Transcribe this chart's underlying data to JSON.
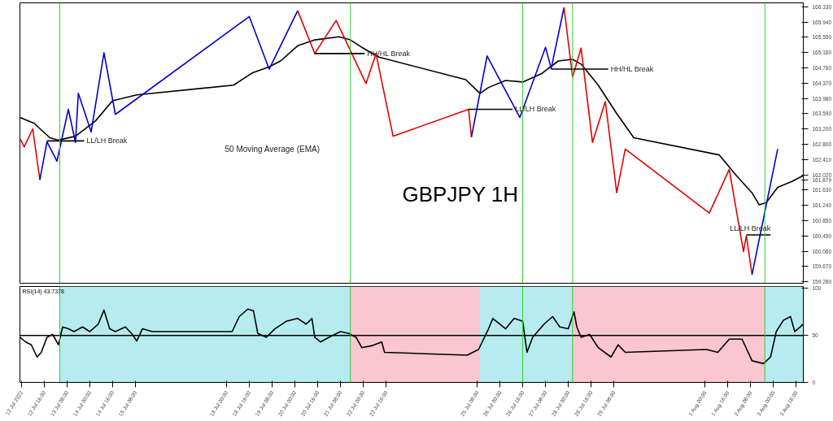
{
  "chart_data": [
    {
      "type": "line",
      "title": "GBPJPY 1H",
      "xlim": [
        "2022-07-11T23:00",
        "2022-08-03T21:00"
      ],
      "ylim": [
        159.24,
        166.43
      ],
      "tick_labels": "y",
      "grid": false,
      "yticks": [
        {
          "value": 166.33,
          "label": "166.330"
        },
        {
          "value": 165.94,
          "label": "165.940"
        },
        {
          "value": 165.55,
          "label": "165.550"
        },
        {
          "value": 165.16,
          "label": "165.160"
        },
        {
          "value": 164.76,
          "label": "164.760"
        },
        {
          "value": 164.37,
          "label": "164.370"
        },
        {
          "value": 163.98,
          "label": "163.980"
        },
        {
          "value": 163.59,
          "label": "163.590"
        },
        {
          "value": 163.2,
          "label": "163.200"
        },
        {
          "value": 162.8,
          "label": "162.800"
        },
        {
          "value": 162.41,
          "label": "162.410"
        },
        {
          "value": 162.02,
          "label": "162.020"
        },
        {
          "value": 161.879,
          "label": "161.879"
        },
        {
          "value": 161.63,
          "label": "161.630"
        },
        {
          "value": 161.24,
          "label": "161.240"
        },
        {
          "value": 160.85,
          "label": "160.850"
        },
        {
          "value": 160.45,
          "label": "160.450"
        },
        {
          "value": 160.06,
          "label": "160.060"
        },
        {
          "value": 159.67,
          "label": "159.670"
        },
        {
          "value": 159.28,
          "label": "159.280"
        }
      ],
      "series": [
        {
          "color": "#000000",
          "x": [
            "2022-07-11T23:00",
            "2022-07-12T09:00",
            "2022-07-12T20:00",
            "2022-07-13T02:00",
            "2022-07-13T14:00",
            "2022-07-14T04:00",
            "2022-07-14T16:00",
            "2022-07-15T09:00",
            "2022-07-18T05:00",
            "2022-07-18T18:00",
            "2022-07-19T06:00",
            "2022-07-19T14:00",
            "2022-07-20T02:00",
            "2022-07-20T14:00",
            "2022-07-21T07:00",
            "2022-07-21T15:00",
            "2022-07-21T23:00",
            "2022-07-22T11:00",
            "2022-07-25T00:00",
            "2022-07-25T10:00",
            "2022-07-25T16:00",
            "2022-07-26T04:00",
            "2022-07-26T16:00",
            "2022-07-27T05:00",
            "2022-07-27T17:00",
            "2022-07-28T03:00",
            "2022-07-28T09:00",
            "2022-07-28T21:00",
            "2022-07-29T10:00",
            "2022-07-29T22:00",
            "2022-08-01T10:00",
            "2022-08-01T22:00",
            "2022-08-02T09:00",
            "2022-08-02T14:00",
            "2022-08-02T19:00",
            "2022-08-03T03:00",
            "2022-08-03T13:00",
            "2022-08-03T21:00"
          ],
          "values": [
            163.49,
            163.34,
            162.97,
            162.91,
            163.01,
            163.4,
            163.92,
            164.07,
            164.32,
            164.63,
            164.79,
            164.94,
            165.33,
            165.48,
            165.56,
            165.48,
            165.29,
            165.04,
            164.46,
            164.11,
            164.26,
            164.44,
            164.4,
            164.61,
            164.94,
            164.98,
            164.86,
            164.32,
            163.59,
            162.97,
            162.53,
            162.0,
            161.56,
            161.25,
            161.31,
            161.7,
            161.85,
            162.0
          ]
        },
        {
          "color": "#e00000",
          "x": [
            "2022-07-11T23:00",
            "2022-07-12T02:00",
            "2022-07-12T08:00",
            "2022-07-12T13:00"
          ],
          "values": [
            162.95,
            162.74,
            163.2,
            161.89
          ]
        },
        {
          "color": "#0000cc",
          "x": [
            "2022-07-12T13:00",
            "2022-07-12T18:00",
            "2022-07-13T01:00",
            "2022-07-13T09:00",
            "2022-07-13T14:00",
            "2022-07-13T16:00",
            "2022-07-14T01:00",
            "2022-07-14T10:00",
            "2022-07-14T18:00",
            "2022-07-18T16:00",
            "2022-07-19T06:00",
            "2022-07-20T02:00"
          ],
          "values": [
            161.89,
            162.87,
            162.37,
            163.7,
            162.85,
            164.11,
            163.12,
            165.15,
            163.57,
            166.08,
            164.73,
            166.23
          ]
        },
        {
          "color": "#e00000",
          "x": [
            "2022-07-20T02:00",
            "2022-07-20T14:00",
            "2022-07-21T05:00",
            "2022-07-22T02:00",
            "2022-07-22T09:00",
            "2022-07-22T21:00",
            "2022-07-25T02:00",
            "2022-07-25T04:00"
          ],
          "values": [
            166.23,
            165.13,
            165.98,
            164.36,
            165.13,
            163.01,
            163.7,
            162.99
          ]
        },
        {
          "color": "#0000cc",
          "x": [
            "2022-07-25T04:00",
            "2022-07-25T15:00",
            "2022-07-26T14:00",
            "2022-07-27T08:00",
            "2022-07-27T12:00",
            "2022-07-27T21:00"
          ],
          "values": [
            162.99,
            165.07,
            163.49,
            165.29,
            164.75,
            166.31
          ]
        },
        {
          "color": "#e00000",
          "x": [
            "2022-07-27T21:00",
            "2022-07-28T03:00",
            "2022-07-28T09:00",
            "2022-07-28T17:00",
            "2022-07-29T02:00",
            "2022-07-29T10:00",
            "2022-07-29T16:00",
            "2022-08-01T03:00",
            "2022-08-01T17:00",
            "2022-08-02T03:00",
            "2022-08-02T05:00",
            "2022-08-02T09:00"
          ],
          "values": [
            166.31,
            164.53,
            165.27,
            162.85,
            163.9,
            161.56,
            162.68,
            161.04,
            162.16,
            160.05,
            160.46,
            159.46
          ]
        },
        {
          "color": "#0000cc",
          "x": [
            "2022-08-02T09:00",
            "2022-08-03T03:00"
          ],
          "values": [
            159.46,
            162.68
          ]
        },
        {
          "color": "#000000",
          "x": [
            "2022-07-12T18:00",
            "2022-07-13T20:00"
          ],
          "values": [
            162.89,
            162.89
          ]
        },
        {
          "color": "#000000",
          "x": [
            "2022-07-20T14:00",
            "2022-07-22T01:00"
          ],
          "values": [
            165.13,
            165.13
          ]
        },
        {
          "color": "#000000",
          "x": [
            "2022-07-25T02:00",
            "2022-07-26T09:00"
          ],
          "values": [
            163.7,
            163.7
          ]
        },
        {
          "color": "#000000",
          "x": [
            "2022-07-27T12:00",
            "2022-07-29T04:00"
          ],
          "values": [
            164.73,
            164.73
          ]
        },
        {
          "color": "#000000",
          "x": [
            "2022-08-02T05:00",
            "2022-08-02T22:00"
          ],
          "values": [
            160.48,
            160.48
          ]
        }
      ],
      "ref_lines": [
        {
          "axis": "x",
          "value": "2022-07-13T03:00",
          "color": "#33cc33"
        },
        {
          "axis": "x",
          "value": "2022-07-21T15:00",
          "color": "#33cc33"
        },
        {
          "axis": "x",
          "value": "2022-07-26T16:00",
          "color": "#33cc33"
        },
        {
          "axis": "x",
          "value": "2022-07-28T03:00",
          "color": "#33cc33"
        },
        {
          "axis": "x",
          "value": "2022-08-02T18:00",
          "color": "#33cc33"
        }
      ],
      "annotations": [
        {
          "text": "LL/LH Break",
          "x": "2022-07-13T20:00",
          "y": 162.89
        },
        {
          "text": "HH/HL Break",
          "x": "2022-07-22T01:00",
          "y": 165.13
        },
        {
          "text": "LL/LH Break",
          "x": "2022-07-26T09:00",
          "y": 163.7
        },
        {
          "text": "HH/HL Break",
          "x": "2022-07-29T04:00",
          "y": 164.73
        },
        {
          "text": "LL/LH Break",
          "x": "2022-08-02T22:00",
          "y": 160.48
        },
        "50 Moving Average (EMA)"
      ]
    },
    {
      "type": "line",
      "title": "RSI(14) 43.7378",
      "xlim": [
        "2022-07-11T23:00",
        "2022-08-03T21:00"
      ],
      "ylim": [
        0,
        102
      ],
      "yticks": [
        100,
        50,
        0
      ],
      "grid": false,
      "xticks": [
        {
          "value": "2022-07-12T00:00",
          "label": "12 Jul 2022"
        },
        {
          "value": "2022-07-12T16:00",
          "label": "12 Jul 16:00"
        },
        {
          "value": "2022-07-13T08:00",
          "label": "13 Jul 08:00"
        },
        {
          "value": "2022-07-14T00:00",
          "label": "14 Jul 00:00"
        },
        {
          "value": "2022-07-14T16:00",
          "label": "14 Jul 16:00"
        },
        {
          "value": "2022-07-15T08:00",
          "label": "15 Jul 08:00"
        },
        {
          "value": "2022-07-18T00:00",
          "label": "18 Jul 00:00"
        },
        {
          "value": "2022-07-18T16:00",
          "label": "18 Jul 16:00"
        },
        {
          "value": "2022-07-19T08:00",
          "label": "19 Jul 08:00"
        },
        {
          "value": "2022-07-20T00:00",
          "label": "20 Jul 00:00"
        },
        {
          "value": "2022-07-20T16:00",
          "label": "20 Jul 16:00"
        },
        {
          "value": "2022-07-21T08:00",
          "label": "21 Jul 08:00"
        },
        {
          "value": "2022-07-22T00:00",
          "label": "22 Jul 00:00"
        },
        {
          "value": "2022-07-22T16:00",
          "label": "22 Jul 16:00"
        },
        {
          "value": "2022-07-25T08:00",
          "label": "25 Jul 08:00"
        },
        {
          "value": "2022-07-26T00:00",
          "label": "26 Jul 00:00"
        },
        {
          "value": "2022-07-26T16:00",
          "label": "26 Jul 16:00"
        },
        {
          "value": "2022-07-27T08:00",
          "label": "27 Jul 08:00"
        },
        {
          "value": "2022-07-28T00:00",
          "label": "28 Jul 00:00"
        },
        {
          "value": "2022-07-28T16:00",
          "label": "28 Jul 16:00"
        },
        {
          "value": "2022-07-29T08:00",
          "label": "29 Jul 08:00"
        },
        {
          "value": "2022-08-01T00:00",
          "label": "1 Aug 00:00"
        },
        {
          "value": "2022-08-01T16:00",
          "label": "1 Aug 16:00"
        },
        {
          "value": "2022-08-02T08:00",
          "label": "2 Aug 08:00"
        },
        {
          "value": "2022-08-03T00:00",
          "label": "3 Aug 00:00"
        },
        {
          "value": "2022-08-03T16:00",
          "label": "3 Aug 16:00"
        }
      ],
      "series": [
        {
          "color": "#000000",
          "x": [
            "2022-07-11T23:00",
            "2022-07-12T03:00",
            "2022-07-12T07:00",
            "2022-07-12T11:00",
            "2022-07-12T14:00",
            "2022-07-12T18:00",
            "2022-07-12T22:00",
            "2022-07-13T02:00",
            "2022-07-13T05:00",
            "2022-07-13T09:00",
            "2022-07-13T13:00",
            "2022-07-13T19:00",
            "2022-07-14T00:00",
            "2022-07-14T06:00",
            "2022-07-14T10:00",
            "2022-07-14T14:00",
            "2022-07-14T18:00",
            "2022-07-15T01:00",
            "2022-07-15T06:00",
            "2022-07-15T09:00",
            "2022-07-15T13:00",
            "2022-07-15T20:00",
            "2022-07-18T04:00",
            "2022-07-18T09:00",
            "2022-07-18T15:00",
            "2022-07-18T19:00",
            "2022-07-18T22:00",
            "2022-07-19T04:00",
            "2022-07-19T10:00",
            "2022-07-19T18:00",
            "2022-07-20T02:00",
            "2022-07-20T08:00",
            "2022-07-20T12:00",
            "2022-07-20T14:00",
            "2022-07-20T18:00",
            "2022-07-21T00:00",
            "2022-07-21T08:00",
            "2022-07-21T14:00",
            "2022-07-21T19:00",
            "2022-07-21T23:00",
            "2022-07-22T06:00",
            "2022-07-22T13:00",
            "2022-07-22T15:00",
            "2022-07-25T01:00",
            "2022-07-25T09:00",
            "2022-07-25T16:00",
            "2022-07-25T19:00",
            "2022-07-26T00:00",
            "2022-07-26T04:00",
            "2022-07-26T10:00",
            "2022-07-26T16:00",
            "2022-07-26T19:00",
            "2022-07-26T23:00",
            "2022-07-27T07:00",
            "2022-07-27T13:00",
            "2022-07-27T18:00",
            "2022-07-28T00:00",
            "2022-07-28T04:00",
            "2022-07-28T06:00",
            "2022-07-28T09:00",
            "2022-07-28T15:00",
            "2022-07-28T21:00",
            "2022-07-29T06:00",
            "2022-07-29T11:00",
            "2022-07-29T16:00",
            "2022-08-01T01:00",
            "2022-08-01T09:00",
            "2022-08-01T17:00",
            "2022-08-02T02:00",
            "2022-08-02T09:00",
            "2022-08-02T17:00",
            "2022-08-02T22:00",
            "2022-08-03T02:00",
            "2022-08-03T07:00",
            "2022-08-03T12:00",
            "2022-08-03T15:00",
            "2022-08-03T21:00"
          ],
          "values": [
            48,
            43,
            40,
            27,
            32,
            48,
            51,
            40,
            59,
            57,
            54,
            59,
            54,
            62,
            77,
            57,
            54,
            59,
            51,
            44,
            57,
            54,
            54,
            70,
            78,
            76,
            52,
            48,
            57,
            65,
            68,
            62,
            68,
            48,
            43,
            48,
            54,
            52,
            48,
            37,
            39,
            43,
            32,
            29,
            35,
            57,
            68,
            62,
            57,
            68,
            65,
            32,
            48,
            62,
            70,
            59,
            57,
            75,
            59,
            48,
            51,
            37,
            27,
            40,
            32,
            35,
            32,
            46,
            46,
            23,
            20,
            27,
            54,
            66,
            70,
            54,
            62
          ]
        }
      ],
      "ref_lines": [
        {
          "axis": "y",
          "value": 50,
          "color": "#000000"
        },
        {
          "axis": "x",
          "value": "2022-07-13T03:00",
          "color": "#33cc33"
        },
        {
          "axis": "x",
          "value": "2022-07-21T15:00",
          "color": "#33cc33"
        },
        {
          "axis": "x",
          "value": "2022-07-26T16:00",
          "color": "#33cc33"
        },
        {
          "axis": "x",
          "value": "2022-07-28T03:00",
          "color": "#33cc33"
        },
        {
          "axis": "x",
          "value": "2022-08-02T18:00",
          "color": "#33cc33"
        }
      ],
      "bands": [
        {
          "axis": "x",
          "from": "2022-07-13T03:00",
          "to": "2022-07-21T15:00",
          "color": "#aeeaed"
        },
        {
          "axis": "x",
          "from": "2022-07-21T15:00",
          "to": "2022-07-25T10:00",
          "color": "#f9c0cb"
        },
        {
          "axis": "x",
          "from": "2022-07-25T10:00",
          "to": "2022-07-28T03:00",
          "color": "#aeeaed"
        },
        {
          "axis": "x",
          "from": "2022-07-28T03:00",
          "to": "2022-08-02T18:00",
          "color": "#f9c0cb"
        },
        {
          "axis": "x",
          "from": "2022-08-02T18:00",
          "to": "2022-08-03T21:00",
          "color": "#aeeaed"
        }
      ]
    }
  ]
}
